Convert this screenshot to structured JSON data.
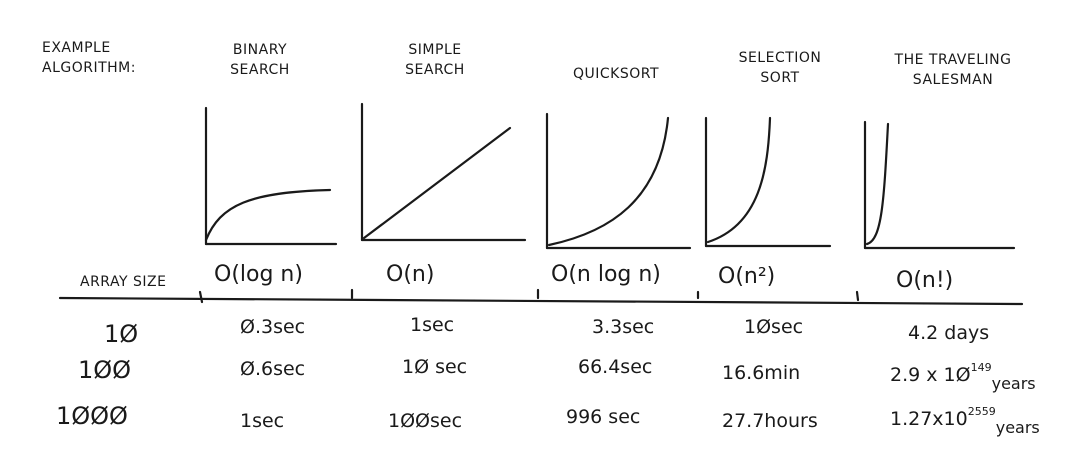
{
  "header": {
    "example_line1": "EXAMPLE",
    "example_line2": "ALGORITHM:"
  },
  "algorithms": [
    {
      "name_line1": "BINARY",
      "name_line2": "SEARCH",
      "complexity": "O(log n)",
      "times": [
        "Ø.3sec",
        "Ø.6sec",
        "1sec"
      ]
    },
    {
      "name_line1": "SIMPLE",
      "name_line2": "SEARCH",
      "complexity": "O(n)",
      "times": [
        "1sec",
        "1Ø sec",
        "1ØØsec"
      ]
    },
    {
      "name_line1": "QUICKSORT",
      "name_line2": "",
      "complexity": "O(n log n)",
      "times": [
        "3.3sec",
        "66.4sec",
        "996 sec"
      ]
    },
    {
      "name_line1": "SELECTION",
      "name_line2": "SORT",
      "complexity": "O(n²)",
      "times": [
        "1Øsec",
        "16.6min",
        "27.7hours"
      ]
    },
    {
      "name_line1": "THE TRAVELING",
      "name_line2": "SALESMAN",
      "complexity": "O(n!)",
      "times": [
        "4.2 days",
        "2.9 x 1Ø",
        "1.27x10"
      ],
      "exponents": [
        "",
        "149",
        "2559"
      ],
      "units": [
        "",
        "years",
        "years"
      ]
    }
  ],
  "array_size_label": "ARRAY SIZE",
  "array_sizes": [
    "1Ø",
    "1ØØ",
    "1ØØØ"
  ]
}
